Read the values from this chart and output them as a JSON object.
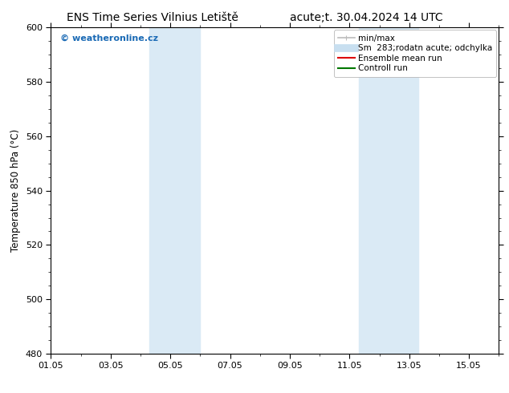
{
  "title_left": "ENS Time Series Vilnius Letiště",
  "title_right": "acute;t. 30.04.2024 14 UTC",
  "ylabel": "Temperature 850 hPa (°C)",
  "ylim": [
    480,
    600
  ],
  "yticks": [
    480,
    500,
    520,
    540,
    560,
    580,
    600
  ],
  "xlim_start": 0,
  "xlim_end": 14.5,
  "xtick_positions": [
    0,
    2,
    4,
    6,
    8,
    10,
    12,
    14
  ],
  "xtick_labels": [
    "01.05",
    "03.05",
    "05.05",
    "07.05",
    "09.05",
    "11.05",
    "13.05",
    "15.05"
  ],
  "shaded_bands": [
    {
      "xmin": 3.3,
      "xmax": 5.0
    },
    {
      "xmin": 10.3,
      "xmax": 12.3
    }
  ],
  "shade_color": "#daeaf5",
  "bg_color": "#ffffff",
  "watermark_text": "© weatheronline.cz",
  "watermark_color": "#1a6ab5",
  "legend_items": [
    {
      "label": "min/max",
      "color": "#bbbbbb",
      "lw": 1.2,
      "type": "hline"
    },
    {
      "label": "Sm  283;rodatn acute; odchylka",
      "color": "#c8dff0",
      "lw": 7,
      "type": "line"
    },
    {
      "label": "Ensemble mean run",
      "color": "#dd0000",
      "lw": 1.5,
      "type": "line"
    },
    {
      "label": "Controll run",
      "color": "#007700",
      "lw": 1.5,
      "type": "line"
    }
  ],
  "title_fontsize": 10,
  "tick_fontsize": 8,
  "ylabel_fontsize": 8.5,
  "watermark_fontsize": 8,
  "legend_fontsize": 7.5
}
